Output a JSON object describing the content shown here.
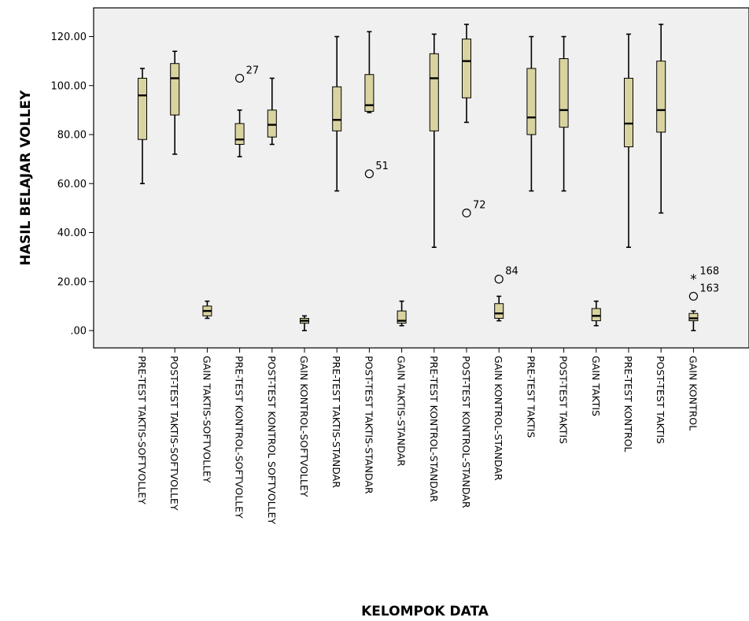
{
  "chart_data": {
    "type": "boxplot",
    "xlabel": "KELOMPOK DATA",
    "ylabel": "HASIL BELAJAR VOLLEY",
    "ylim": [
      -7,
      130
    ],
    "yticks": [
      0,
      20,
      40,
      60,
      80,
      100,
      120
    ],
    "ytick_labels": [
      ".00",
      "20.00",
      "40.00",
      "60.00",
      "80.00",
      "100.00",
      "120.00"
    ],
    "grid": false,
    "colors": {
      "box_fill": "#d9d3a0",
      "plot_bg": "#f0f0f0",
      "stroke": "#000000"
    },
    "categories": [
      "PRE-TEST TAKTIS-SOFTVOLLEY",
      "POST-TEST TAKTIS-SOFTVOLLEY",
      "GAIN TAKTIS-SOFTVOLLEY",
      "PRE-TEST KONTROL-SOFTVOLLEY",
      "POST-TEST KONTROL SOFTVOLLEY",
      "GAIN KONTROL-SOFTVOLLEY",
      "PRE-TEST TAKTIS-STANDAR",
      "POST-TEST TAKTIS-STANDAR",
      "GAIN TAKTIS-STANDAR",
      "PRE-TEST KONTROL-STANDAR",
      "POST-TEST KONTROL-STANDAR",
      "GAIN KONTROL-STANDAR",
      "PRE-TEST TAKTIS",
      "POST-TEST TAKTIS",
      "GAIN TAKTIS",
      "PRE-TEST KONTROL",
      "POST-TEST TAKTIS",
      "GAIN KONTROL"
    ],
    "boxes": [
      {
        "min": 60,
        "q1": 78,
        "median": 96,
        "q3": 103,
        "max": 107,
        "outliers": []
      },
      {
        "min": 72,
        "q1": 88,
        "median": 103,
        "q3": 109,
        "max": 114,
        "outliers": []
      },
      {
        "min": 5,
        "q1": 6,
        "median": 8,
        "q3": 10,
        "max": 12,
        "outliers": []
      },
      {
        "min": 71,
        "q1": 76,
        "median": 78,
        "q3": 84.5,
        "max": 90,
        "outliers": [
          {
            "value": 103,
            "label": "27",
            "marker": "circle"
          }
        ]
      },
      {
        "min": 76,
        "q1": 79,
        "median": 84,
        "q3": 90,
        "max": 103,
        "outliers": []
      },
      {
        "min": 0,
        "q1": 3,
        "median": 4,
        "q3": 5,
        "max": 6,
        "outliers": []
      },
      {
        "min": 57,
        "q1": 81.5,
        "median": 86,
        "q3": 99.5,
        "max": 120,
        "outliers": []
      },
      {
        "min": 89,
        "q1": 89.5,
        "median": 92,
        "q3": 104.5,
        "max": 122,
        "outliers": [
          {
            "value": 64,
            "label": "51",
            "marker": "circle"
          }
        ]
      },
      {
        "min": 2,
        "q1": 3,
        "median": 4,
        "q3": 8,
        "max": 12,
        "outliers": []
      },
      {
        "min": 34,
        "q1": 81.5,
        "median": 103,
        "q3": 113,
        "max": 121,
        "outliers": []
      },
      {
        "min": 85,
        "q1": 95,
        "median": 110,
        "q3": 119,
        "max": 125,
        "outliers": [
          {
            "value": 48,
            "label": "72",
            "marker": "circle"
          }
        ]
      },
      {
        "min": 4,
        "q1": 5,
        "median": 7,
        "q3": 11,
        "max": 14,
        "outliers": [
          {
            "value": 21,
            "label": "84",
            "marker": "circle"
          }
        ]
      },
      {
        "min": 57,
        "q1": 80,
        "median": 87,
        "q3": 107,
        "max": 120,
        "outliers": []
      },
      {
        "min": 57,
        "q1": 83,
        "median": 90,
        "q3": 111,
        "max": 120,
        "outliers": []
      },
      {
        "min": 2,
        "q1": 4,
        "median": 6,
        "q3": 9,
        "max": 12,
        "outliers": []
      },
      {
        "min": 34,
        "q1": 75,
        "median": 84.5,
        "q3": 103,
        "max": 121,
        "outliers": []
      },
      {
        "min": 48,
        "q1": 81,
        "median": 90,
        "q3": 110,
        "max": 125,
        "outliers": []
      },
      {
        "min": 0,
        "q1": 4,
        "median": 5,
        "q3": 7,
        "max": 8,
        "outliers": [
          {
            "value": 14,
            "label": "163",
            "marker": "circle"
          },
          {
            "value": 21,
            "label": "168",
            "marker": "star"
          }
        ]
      }
    ]
  }
}
